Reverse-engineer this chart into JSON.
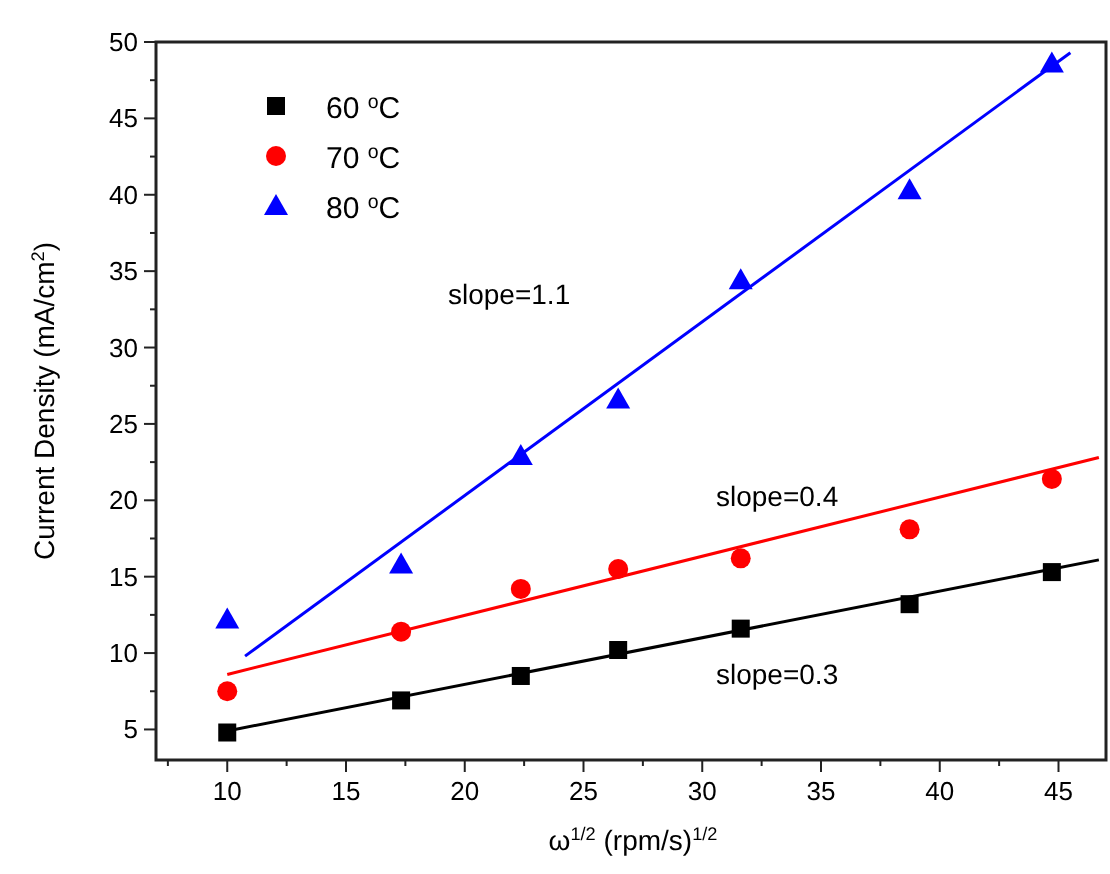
{
  "chart_data": {
    "type": "scatter",
    "xlabel": "ω$^{1/2}$ (rpm/s)$^{1/2}$",
    "ylabel": "Current Density (mA/cm$^{2}$)",
    "xlim": [
      7,
      47
    ],
    "ylim": [
      3,
      50
    ],
    "xticks": [
      {
        "value": 7.5,
        "label": null
      },
      10,
      {
        "value": 12.5,
        "label": null
      },
      15,
      {
        "value": 17.5,
        "label": null
      },
      20,
      {
        "value": 22.5,
        "label": null
      },
      25,
      {
        "value": 27.5,
        "label": null
      },
      30,
      {
        "value": 32.5,
        "label": null
      },
      35,
      {
        "value": 37.5,
        "label": null
      },
      40,
      {
        "value": 42.5,
        "label": null
      },
      45
    ],
    "yticks": [
      5,
      {
        "value": 7.5,
        "label": null
      },
      10,
      {
        "value": 12.5,
        "label": null
      },
      15,
      {
        "value": 17.5,
        "label": null
      },
      20,
      {
        "value": 22.5,
        "label": null
      },
      25,
      {
        "value": 27.5,
        "label": null
      },
      30,
      {
        "value": 32.5,
        "label": null
      },
      35,
      {
        "value": 37.5,
        "label": null
      },
      40,
      {
        "value": 42.5,
        "label": null
      },
      45,
      {
        "value": 47.5,
        "label": null
      },
      50
    ],
    "x": [
      10,
      17.32,
      22.36,
      26.46,
      31.62,
      38.73,
      44.72
    ],
    "legend": "top left",
    "grid": false,
    "series": [
      {
        "name": "60 $^{o}$C",
        "color": "#000000",
        "marker": "square",
        "values": [
          4.8,
          6.9,
          8.5,
          10.2,
          11.6,
          13.2,
          15.3
        ]
      },
      {
        "name": "70 $^{o}$C",
        "color": "#ff0000",
        "marker": "circle",
        "values": [
          7.5,
          11.4,
          14.2,
          15.5,
          16.2,
          18.1,
          21.4
        ]
      },
      {
        "name": "80 $^{o}$C",
        "color": "#0000ff",
        "marker": "triangle",
        "values": [
          12.2,
          15.8,
          22.9,
          26.6,
          34.4,
          40.3,
          48.6
        ]
      },
      {
        "type": "line",
        "color": "#000000",
        "x": [
          10,
          46.7
        ],
        "values": [
          4.9,
          16.1
        ]
      },
      {
        "type": "line",
        "color": "#ff0000",
        "x": [
          10,
          46.7
        ],
        "values": [
          8.6,
          22.8
        ]
      },
      {
        "type": "line",
        "color": "#0000ff",
        "x": [
          10.75,
          45.5
        ],
        "values": [
          9.8,
          49.3
        ]
      }
    ],
    "annotations": [
      "slope=1.1",
      "slope=0.4",
      "slope=0.3"
    ]
  }
}
